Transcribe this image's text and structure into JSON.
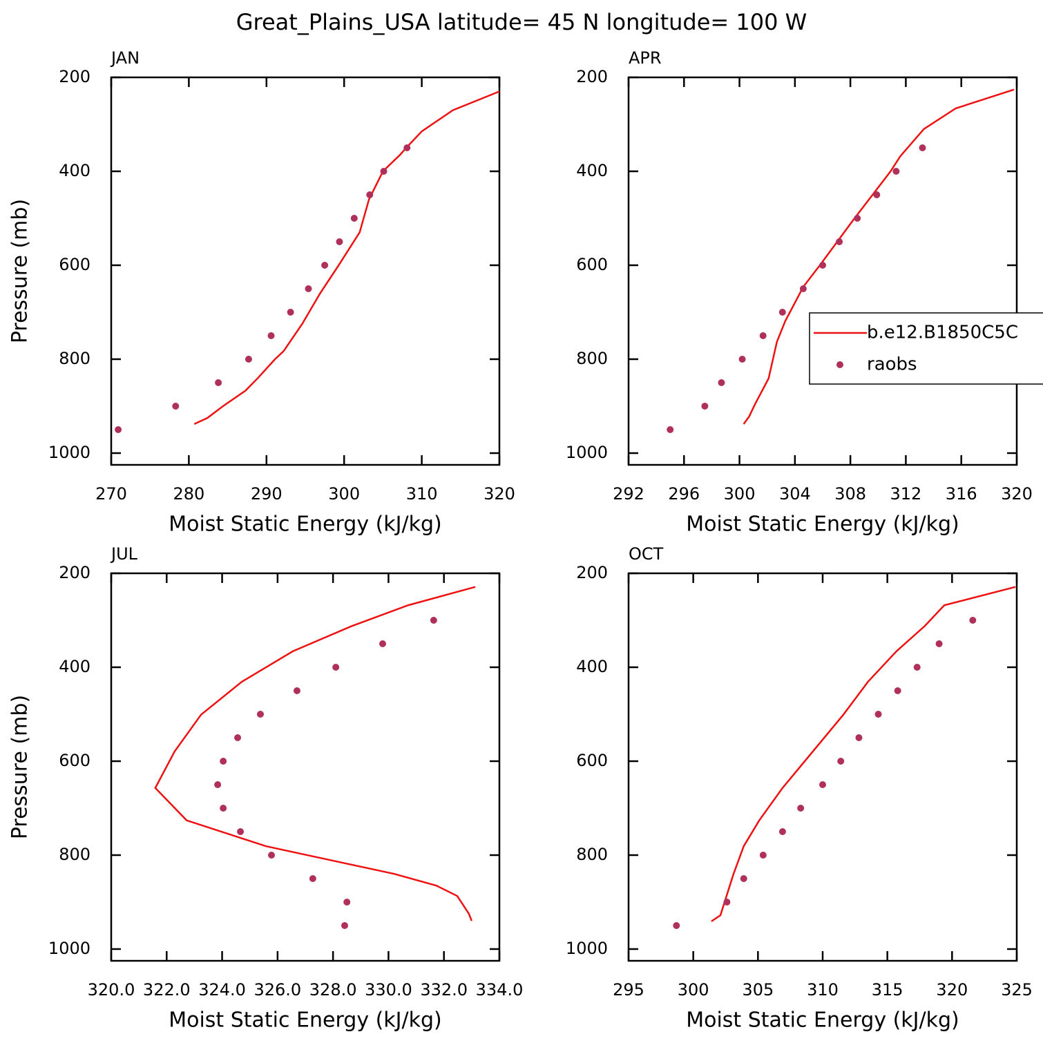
{
  "title": "Great_Plains_USA  latitude= 45 N longitude= 100 W",
  "chart_data": [
    {
      "type": "line",
      "title": "JAN",
      "xlabel": "Moist Static Energy (kJ/kg)",
      "ylabel": "Pressure (mb)",
      "xlim": [
        270,
        320
      ],
      "xticks": [
        270,
        280,
        290,
        300,
        310,
        320
      ],
      "ylim": [
        1025,
        200
      ],
      "yticks": [
        200,
        400,
        600,
        800,
        1000
      ],
      "series": [
        {
          "type": "line",
          "color": "#ee1111",
          "x": [
            280.7,
            282.4,
            284.4,
            287.3,
            288.9,
            291.1,
            292.2,
            294.6,
            296.9,
            299.3,
            302.0,
            303.2,
            305.0,
            307.2,
            308.0,
            310.0,
            314.0,
            320.0
          ],
          "y": [
            938,
            925,
            900,
            867,
            840,
            800,
            783,
            725,
            660,
            600,
            530,
            460,
            400,
            365,
            350,
            315,
            270,
            230
          ]
        },
        {
          "type": "scatter",
          "color": "#b0305c",
          "x": [
            270.9,
            278.3,
            283.8,
            287.7,
            290.6,
            293.1,
            295.4,
            297.5,
            299.4,
            301.3,
            303.3,
            305.1,
            308.1
          ],
          "y": [
            950,
            900,
            850,
            800,
            750,
            700,
            650,
            600,
            550,
            500,
            450,
            400,
            350
          ]
        }
      ]
    },
    {
      "type": "line",
      "title": "APR",
      "xlabel": "Moist Static Energy (kJ/kg)",
      "xlim": [
        292,
        320
      ],
      "xticks": [
        292,
        296,
        300,
        304,
        308,
        312,
        316,
        320
      ],
      "ylim": [
        1025,
        200
      ],
      "yticks": [
        200,
        400,
        600,
        800,
        1000
      ],
      "legend": "right",
      "series": [
        {
          "type": "line",
          "name": "b.e12.B1850C5C",
          "color": "#ee1111",
          "x": [
            300.3,
            300.7,
            301.1,
            302.1,
            302.7,
            303.3,
            304.6,
            305.8,
            308.3,
            310.9,
            311.6,
            313.3,
            315.6,
            319.8
          ],
          "y": [
            938,
            922,
            897,
            841,
            763,
            719,
            646,
            600,
            500,
            400,
            368,
            310,
            266,
            226
          ]
        },
        {
          "type": "scatter",
          "name": "raobs",
          "color": "#b0305c",
          "x": [
            295.0,
            297.5,
            298.7,
            300.2,
            301.7,
            303.1,
            304.6,
            306.0,
            307.2,
            308.5,
            309.9,
            311.3,
            313.2
          ],
          "y": [
            950,
            900,
            850,
            800,
            750,
            700,
            650,
            600,
            550,
            500,
            450,
            400,
            350
          ]
        }
      ]
    },
    {
      "type": "line",
      "title": "JUL",
      "xlabel": "Moist Static Energy (kJ/kg)",
      "ylabel": "Pressure (mb)",
      "xlim": [
        320,
        334
      ],
      "xticks": [
        {
          "value": 320,
          "label": "320.0"
        },
        {
          "value": 322,
          "label": "322.0"
        },
        {
          "value": 324,
          "label": "324.0"
        },
        {
          "value": 326,
          "label": "326.0"
        },
        {
          "value": 328,
          "label": "328.0"
        },
        {
          "value": 330,
          "label": "330.0"
        },
        {
          "value": 332,
          "label": "332.0"
        },
        {
          "value": 334,
          "label": "334.0"
        }
      ],
      "ylim": [
        1025,
        200
      ],
      "yticks": [
        200,
        400,
        600,
        800,
        1000
      ],
      "series": [
        {
          "type": "line",
          "color": "#ee1111",
          "x": [
            333.0,
            332.9,
            332.48,
            331.73,
            330.21,
            325.58,
            322.72,
            321.59,
            322.29,
            323.24,
            324.71,
            326.55,
            328.69,
            330.71,
            333.13
          ],
          "y": [
            940,
            925,
            887,
            865,
            840,
            781,
            726,
            657,
            579,
            501,
            431,
            366,
            312,
            268,
            229
          ]
        },
        {
          "type": "scatter",
          "color": "#b0305c",
          "x": [
            328.42,
            328.5,
            327.27,
            325.78,
            324.66,
            324.04,
            323.84,
            324.04,
            324.56,
            325.38,
            326.7,
            328.1,
            329.79,
            331.63
          ],
          "y": [
            950,
            900,
            850,
            800,
            750,
            700,
            650,
            600,
            550,
            500,
            450,
            400,
            350,
            300
          ]
        }
      ]
    },
    {
      "type": "line",
      "title": "OCT",
      "xlabel": "Moist Static Energy (kJ/kg)",
      "xlim": [
        295,
        325
      ],
      "xticks": [
        295,
        300,
        305,
        310,
        315,
        320,
        325
      ],
      "ylim": [
        1025,
        200
      ],
      "yticks": [
        200,
        400,
        600,
        800,
        1000
      ],
      "series": [
        {
          "type": "line",
          "color": "#ee1111",
          "x": [
            301.4,
            302.1,
            303.1,
            303.9,
            305.1,
            306.9,
            311.6,
            313.5,
            315.7,
            317.9,
            319.4,
            324.9
          ],
          "y": [
            941,
            928,
            841,
            781,
            726,
            657,
            501,
            431,
            366,
            312,
            268,
            229
          ]
        },
        {
          "type": "scatter",
          "color": "#b0305c",
          "x": [
            298.7,
            302.6,
            303.9,
            305.4,
            306.9,
            308.3,
            310.0,
            311.4,
            312.8,
            314.3,
            315.8,
            317.3,
            319.0,
            321.6
          ],
          "y": [
            950,
            900,
            850,
            800,
            750,
            700,
            650,
            600,
            550,
            500,
            450,
            400,
            350,
            300
          ]
        }
      ]
    }
  ]
}
